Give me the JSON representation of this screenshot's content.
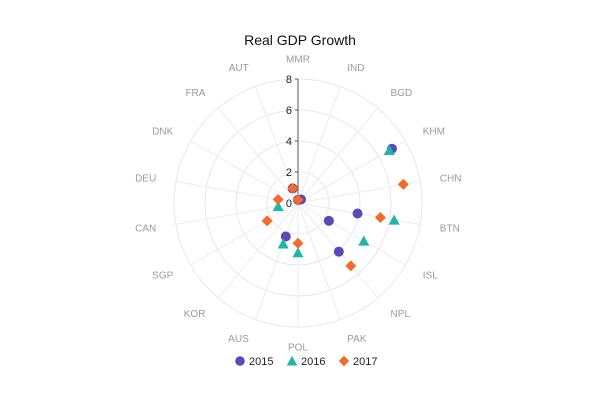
{
  "chart_data": {
    "type": "scatter",
    "subtype": "polar",
    "title": "Real GDP Growth",
    "categories": [
      "MMR",
      "IND",
      "BGD",
      "KHM",
      "CHN",
      "BTN",
      "ISL",
      "NPL",
      "PAK",
      "POL",
      "AUS",
      "KOR",
      "SGP",
      "CAN",
      "DEU",
      "DNK",
      "FRA",
      "AUT"
    ],
    "radial_axis": {
      "range": [
        0,
        8
      ],
      "ticks": [
        0,
        2,
        4,
        6,
        8
      ]
    },
    "grid": true,
    "legend_position": "bottom",
    "colors": {
      "2015": "#5b49b5",
      "2016": "#1fb5a9",
      "2017": "#f16b2b"
    },
    "series": [
      {
        "name": "2015",
        "marker": "circle",
        "points": [
          {
            "category": "MMR",
            "value": 0.2
          },
          {
            "category": "BGD",
            "value": 0.3
          },
          {
            "category": "KHM",
            "value": 7.0
          },
          {
            "category": "BTN",
            "value": 3.9
          },
          {
            "category": "ISL",
            "value": 2.3
          },
          {
            "category": "NPL",
            "value": 4.1
          },
          {
            "category": "AUS",
            "value": 2.3
          },
          {
            "category": "AUT",
            "value": 1.0
          }
        ]
      },
      {
        "name": "2016",
        "marker": "triangle",
        "points": [
          {
            "category": "KHM",
            "value": 6.8
          },
          {
            "category": "BTN",
            "value": 6.3
          },
          {
            "category": "ISL",
            "value": 4.9
          },
          {
            "category": "POL",
            "value": 3.2
          },
          {
            "category": "AUS",
            "value": 2.8
          },
          {
            "category": "CAN",
            "value": 1.3
          }
        ]
      },
      {
        "name": "2017",
        "marker": "diamond",
        "points": [
          {
            "category": "MMR",
            "value": 0.2
          },
          {
            "category": "CHN",
            "value": 6.9
          },
          {
            "category": "BTN",
            "value": 5.4
          },
          {
            "category": "NPL",
            "value": 5.3
          },
          {
            "category": "POL",
            "value": 2.6
          },
          {
            "category": "SGP",
            "value": 2.3
          },
          {
            "category": "DEU",
            "value": 1.3
          },
          {
            "category": "AUT",
            "value": 1.0
          }
        ]
      }
    ]
  }
}
